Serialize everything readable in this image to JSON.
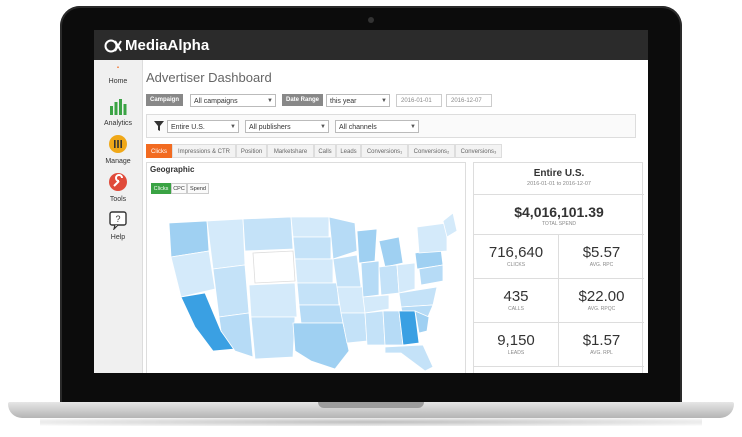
{
  "app": {
    "logo_text": "MediaAlpha"
  },
  "sidebar": {
    "items": [
      {
        "label": "Home",
        "icon": "home-icon"
      },
      {
        "label": "Analytics",
        "icon": "bar-chart-icon"
      },
      {
        "label": "Manage",
        "icon": "list-icon"
      },
      {
        "label": "Tools",
        "icon": "wrench-icon"
      },
      {
        "label": "Help",
        "icon": "help-icon"
      }
    ]
  },
  "page": {
    "title": "Advertiser Dashboard"
  },
  "filters": {
    "campaign_label": "Campaign",
    "campaign_value": "All campaigns",
    "date_range_label": "Date Range",
    "date_range_value": "this year",
    "date_from": "2016-01-01",
    "date_to": "2016-12-07",
    "region_value": "Entire U.S.",
    "publishers_value": "All publishers",
    "channels_value": "All channels"
  },
  "tabs": [
    {
      "label": "Clicks",
      "active": true
    },
    {
      "label": "Impressions & CTR",
      "active": false
    },
    {
      "label": "Position",
      "active": false
    },
    {
      "label": "Marketshare",
      "active": false
    },
    {
      "label": "Calls",
      "active": false
    },
    {
      "label": "Leads",
      "active": false
    },
    {
      "label": "Conversions₁",
      "active": false
    },
    {
      "label": "Conversions₂",
      "active": false
    },
    {
      "label": "Conversions₃",
      "active": false
    }
  ],
  "geo": {
    "title": "Geographic",
    "buttons": [
      {
        "label": "Clicks",
        "active": true
      },
      {
        "label": "CPC",
        "active": false
      },
      {
        "label": "Spend",
        "active": false
      }
    ]
  },
  "stats": {
    "region": "Entire U.S.",
    "date_range": "2016-01-01 to 2016-12-07",
    "total_spend": "$4,016,101.39",
    "total_spend_label": "TOTAL SPEND",
    "cells": [
      {
        "value": "716,640",
        "label": "CLICKS"
      },
      {
        "value": "$5.57",
        "label": "AVG. RPC"
      },
      {
        "value": "435",
        "label": "CALLS"
      },
      {
        "value": "$22.00",
        "label": "AVG. RPQC"
      },
      {
        "value": "9,150",
        "label": "LEADS"
      },
      {
        "value": "$1.57",
        "label": "AVG. RPL"
      }
    ]
  },
  "colors": {
    "brand_orange": "#f26b21",
    "active_green": "#3aa344",
    "map_light": "#d4eafa",
    "map_mid": "#9fd0f2",
    "map_dark": "#3aa0e3"
  }
}
